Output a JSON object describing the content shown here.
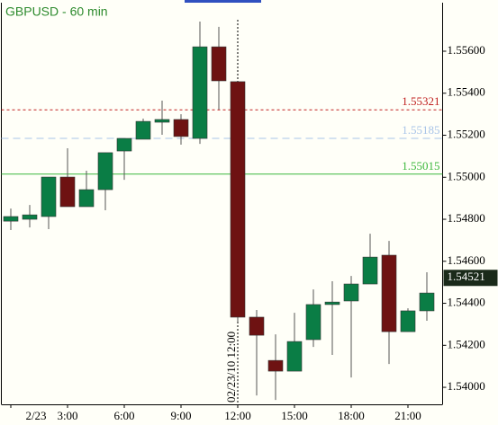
{
  "chart_data": {
    "type": "candlestick",
    "title": "GBPUSD - 60 min",
    "title_color": "#2e8b2e",
    "categories": [
      "2/23",
      null,
      null,
      "3:00",
      null,
      null,
      "6:00",
      null,
      null,
      "9:00",
      null,
      null,
      "12:00",
      null,
      null,
      "15:00",
      null,
      null,
      "18:00",
      null,
      null,
      "21:00",
      null
    ],
    "open": [
      1.54791,
      1.548,
      1.54813,
      1.55001,
      1.5486,
      1.54941,
      1.55125,
      1.55181,
      1.55262,
      1.55275,
      1.55185,
      1.55621,
      1.55455,
      1.54334,
      1.54128,
      1.54077,
      1.54227,
      1.54394,
      1.54411,
      1.54492,
      1.54629,
      1.54265,
      1.54364
    ],
    "high": [
      1.54851,
      1.54868,
      1.55001,
      1.55138,
      1.55031,
      1.55117,
      1.55185,
      1.55279,
      1.55365,
      1.553,
      1.55741,
      1.55716,
      1.55455,
      1.54368,
      1.54252,
      1.54355,
      1.54466,
      1.54505,
      1.5453,
      1.54731,
      1.54697,
      1.54376,
      1.54548
    ],
    "low": [
      1.54749,
      1.54761,
      1.54753,
      1.5486,
      1.5486,
      1.54843,
      1.54988,
      1.55181,
      1.55202,
      1.55155,
      1.55159,
      1.55322,
      1.54312,
      1.53961,
      1.5394,
      1.54077,
      1.54192,
      1.54154,
      1.54047,
      1.54492,
      1.54111,
      1.54265,
      1.54317
    ],
    "close": [
      1.54813,
      1.54821,
      1.55001,
      1.5486,
      1.54941,
      1.55117,
      1.55185,
      1.55266,
      1.55275,
      1.55194,
      1.55621,
      1.55459,
      1.54334,
      1.54248,
      1.54077,
      1.54218,
      1.54394,
      1.54406,
      1.54492,
      1.5462,
      1.54265,
      1.54364,
      1.54449
    ],
    "up_color": "#0a7d45",
    "down_color": "#6e1212",
    "ylim": [
      1.53919,
      1.55831
    ],
    "yticks": [
      {
        "value": 1.54,
        "label": "1.54000"
      },
      {
        "value": 1.542,
        "label": "1.54200"
      },
      {
        "value": 1.544,
        "label": "1.54400"
      },
      {
        "value": 1.546,
        "label": "1.54600"
      },
      {
        "value": 1.548,
        "label": "1.54800"
      },
      {
        "value": 1.55,
        "label": "1.55000"
      },
      {
        "value": 1.552,
        "label": "1.55200"
      },
      {
        "value": 1.554,
        "label": "1.55400"
      },
      {
        "value": 1.556,
        "label": "1.55600"
      }
    ],
    "levels": [
      {
        "value": 1.55321,
        "color": "#c02020",
        "dash": "3,3"
      },
      {
        "value": 1.55185,
        "color": "#a8c4e8",
        "dash": "8,5"
      },
      {
        "value": 1.55015,
        "color": "#3cb83c",
        "dash": "none"
      }
    ],
    "last_price": 1.54521,
    "crosshair": {
      "category": "12:00",
      "label": "02/23/10 12:00"
    }
  }
}
